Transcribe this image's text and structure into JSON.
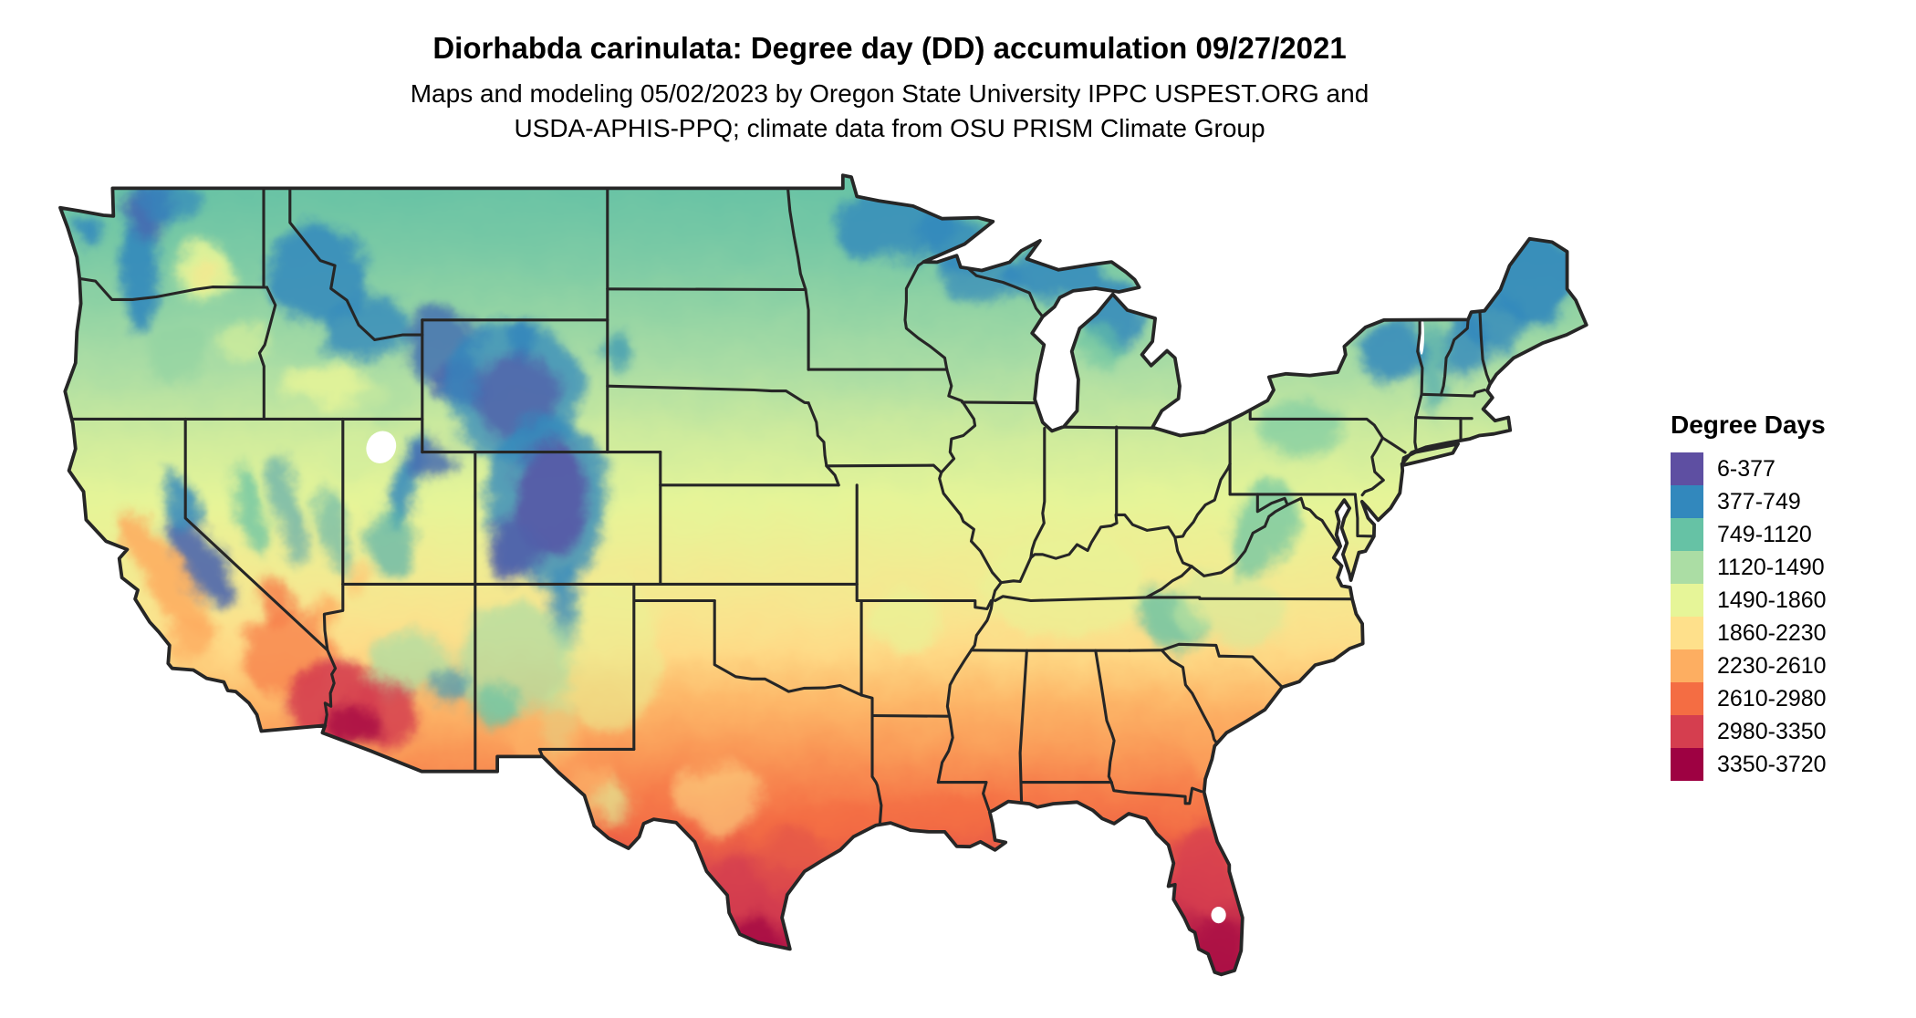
{
  "header": {
    "title": "Diorhabda carinulata: Degree day (DD) accumulation 09/27/2021",
    "subtitle_line1": "Maps and modeling 05/02/2023 by Oregon State University IPPC USPEST.ORG and",
    "subtitle_line2": "USDA-APHIS-PPQ; climate data from OSU PRISM Climate Group"
  },
  "legend": {
    "title": "Degree Days",
    "items": [
      {
        "range": "6-377",
        "color": "#5e4fa2"
      },
      {
        "range": "377-749",
        "color": "#3288bd"
      },
      {
        "range": "749-1120",
        "color": "#66c2a5"
      },
      {
        "range": "1120-1490",
        "color": "#abdda4"
      },
      {
        "range": "1490-1860",
        "color": "#e6f598"
      },
      {
        "range": "1860-2230",
        "color": "#fee08b"
      },
      {
        "range": "2230-2610",
        "color": "#fdae61"
      },
      {
        "range": "2610-2980",
        "color": "#f46d43"
      },
      {
        "range": "2980-3350",
        "color": "#d53e4f"
      },
      {
        "range": "3350-3720",
        "color": "#9e0142"
      }
    ]
  },
  "map": {
    "outline_color": "#262626",
    "water_color": "#ffffff"
  }
}
